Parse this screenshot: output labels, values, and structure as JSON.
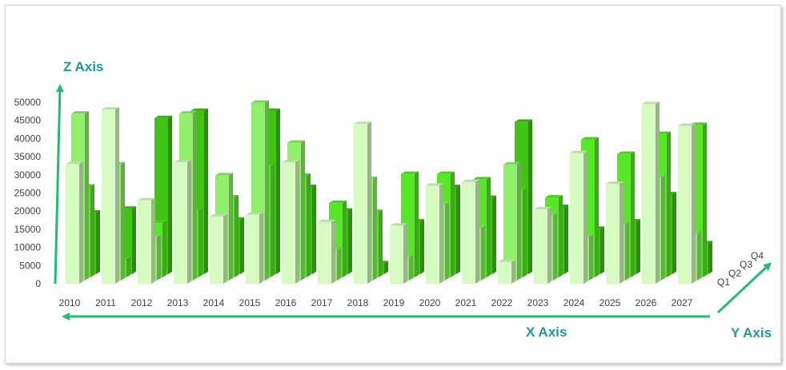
{
  "chart_data": {
    "type": "bar",
    "subtype": "3d-column",
    "categories": [
      "2010",
      "2011",
      "2012",
      "2013",
      "2014",
      "2015",
      "2016",
      "2017",
      "2018",
      "2019",
      "2020",
      "2021",
      "2022",
      "2023",
      "2024",
      "2025",
      "2026",
      "2027"
    ],
    "series": [
      {
        "name": "Q1",
        "values": [
          33000,
          48000,
          23000,
          33500,
          18500,
          19000,
          33500,
          17000,
          44000,
          16000,
          27000,
          28000,
          6000,
          20500,
          36000,
          27500,
          49500,
          43500
        ],
        "color": "#d6fbc0"
      },
      {
        "name": "Q2",
        "values": [
          46000,
          32000,
          12000,
          46000,
          29000,
          49000,
          38000,
          8500,
          28000,
          6500,
          21000,
          14500,
          32000,
          18000,
          12000,
          15500,
          28500,
          13000
        ],
        "color": "#8fef69"
      },
      {
        "name": "Q3",
        "values": [
          25000,
          5000,
          15000,
          18500,
          22000,
          30500,
          28000,
          20500,
          18000,
          28500,
          28500,
          27000,
          24000,
          22000,
          38000,
          34000,
          39500,
          42000
        ],
        "color": "#56e826"
      },
      {
        "name": "Q4",
        "values": [
          17000,
          18000,
          43000,
          45000,
          15000,
          45000,
          24000,
          17500,
          3000,
          14500,
          24000,
          21000,
          42000,
          18500,
          12500,
          14500,
          22000,
          8500
        ],
        "color": "#3fc414"
      }
    ],
    "zlim": [
      0,
      50000
    ],
    "z_ticks": [
      "0",
      "5000",
      "10000",
      "15000",
      "20000",
      "25000",
      "30000",
      "35000",
      "40000",
      "45000",
      "50000"
    ],
    "y_labels": [
      "Q1",
      "Q2",
      "Q3",
      "Q4"
    ],
    "axis_titles": {
      "z": "Z Axis",
      "x": "X Axis",
      "y": "Y Axis"
    },
    "gridlines": false,
    "legend": "none",
    "arrow_color": "#1fbf73"
  }
}
